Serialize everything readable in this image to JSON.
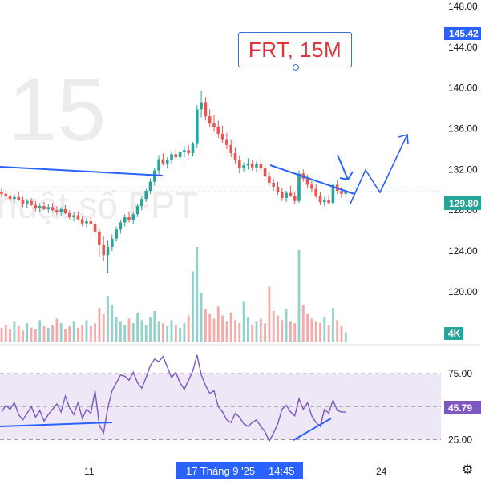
{
  "title": "FRT, 15M",
  "watermark": {
    "interval": "15",
    "brand": "huật số FPT"
  },
  "last_price_label": "129.80",
  "target_price_label": "145.42",
  "volume_badge": "4K",
  "rsi_badge": "45.79",
  "crosshair_date_label": "17 Tháng 9 '25",
  "crosshair_time_label": "14:45",
  "settings_icon": "gear-icon",
  "colors": {
    "up": "#26a69a",
    "down": "#ef5350",
    "rsi_line": "#7e57c2",
    "rsi_band": "#ede7f6",
    "drawing": "#2962ff",
    "axis_tag": "#2962ff",
    "volume_badge": "#26a69a",
    "title_text": "#e2323b"
  },
  "chart_data": [
    {
      "type": "candlestick",
      "title": "FRT, 15M",
      "ylabel": "",
      "ylim": [
        117,
        148
      ],
      "y_ticks": [
        "148.00",
        "144.00",
        "140.00",
        "136.00",
        "132.00",
        "128.00",
        "124.00",
        "120.00"
      ],
      "last_price": 129.8,
      "marked_price": 145.42,
      "ohlc": [
        [
          129.8,
          130.2,
          129.3,
          129.6
        ],
        [
          129.6,
          130.0,
          129.1,
          129.4
        ],
        [
          129.4,
          129.9,
          128.8,
          129.1
        ],
        [
          129.1,
          129.6,
          128.7,
          129.3
        ],
        [
          129.3,
          129.8,
          128.9,
          129.0
        ],
        [
          129.0,
          129.3,
          128.3,
          128.6
        ],
        [
          128.6,
          129.1,
          128.2,
          128.9
        ],
        [
          128.9,
          129.2,
          128.4,
          128.5
        ],
        [
          128.5,
          128.9,
          127.9,
          128.2
        ],
        [
          128.2,
          128.7,
          127.8,
          128.4
        ],
        [
          128.4,
          128.8,
          128.0,
          128.1
        ],
        [
          128.1,
          128.6,
          127.7,
          128.3
        ],
        [
          128.3,
          128.7,
          127.9,
          128.0
        ],
        [
          128.0,
          128.4,
          127.5,
          127.8
        ],
        [
          127.8,
          128.3,
          127.4,
          128.1
        ],
        [
          128.1,
          128.5,
          127.6,
          127.7
        ],
        [
          127.7,
          128.0,
          127.1,
          127.3
        ],
        [
          127.3,
          127.8,
          126.9,
          127.5
        ],
        [
          127.5,
          127.9,
          127.0,
          127.1
        ],
        [
          127.1,
          127.4,
          126.4,
          126.7
        ],
        [
          126.7,
          127.2,
          126.3,
          126.9
        ],
        [
          126.9,
          127.3,
          126.5,
          126.6
        ],
        [
          126.6,
          126.9,
          125.6,
          125.9
        ],
        [
          125.9,
          126.2,
          123.4,
          124.6
        ],
        [
          124.6,
          125.4,
          123.0,
          123.6
        ],
        [
          123.6,
          125.0,
          121.8,
          124.4
        ],
        [
          124.4,
          125.6,
          124.0,
          125.2
        ],
        [
          125.2,
          126.4,
          124.9,
          126.1
        ],
        [
          126.1,
          127.0,
          125.7,
          126.8
        ],
        [
          126.8,
          127.6,
          126.4,
          127.3
        ],
        [
          127.3,
          127.9,
          126.8,
          127.0
        ],
        [
          127.0,
          127.8,
          126.6,
          127.6
        ],
        [
          127.6,
          128.6,
          127.3,
          128.4
        ],
        [
          128.4,
          129.4,
          128.0,
          129.1
        ],
        [
          129.1,
          130.1,
          128.8,
          129.9
        ],
        [
          129.9,
          131.1,
          129.6,
          130.8
        ],
        [
          130.8,
          132.2,
          130.4,
          131.9
        ],
        [
          131.9,
          133.4,
          131.5,
          133.0
        ],
        [
          133.0,
          133.6,
          132.4,
          132.6
        ],
        [
          132.6,
          133.2,
          132.1,
          132.9
        ],
        [
          132.9,
          133.8,
          132.6,
          133.5
        ],
        [
          133.5,
          134.0,
          132.9,
          133.2
        ],
        [
          133.2,
          133.9,
          132.8,
          133.7
        ],
        [
          133.7,
          134.3,
          133.2,
          133.9
        ],
        [
          133.9,
          134.4,
          133.4,
          133.6
        ],
        [
          133.6,
          134.7,
          133.3,
          134.5
        ],
        [
          134.5,
          138.3,
          134.1,
          137.9
        ],
        [
          137.9,
          139.7,
          137.1,
          138.6
        ],
        [
          138.6,
          139.1,
          136.8,
          137.2
        ],
        [
          137.2,
          137.9,
          136.1,
          136.5
        ],
        [
          136.5,
          137.3,
          135.7,
          136.2
        ],
        [
          136.2,
          136.8,
          135.1,
          135.5
        ],
        [
          135.5,
          136.3,
          134.6,
          134.9
        ],
        [
          134.9,
          135.6,
          134.0,
          134.4
        ],
        [
          134.4,
          134.9,
          133.2,
          133.6
        ],
        [
          133.6,
          134.2,
          132.6,
          132.9
        ],
        [
          132.9,
          133.4,
          131.6,
          132.1
        ],
        [
          132.1,
          132.7,
          131.8,
          132.4
        ],
        [
          132.4,
          133.1,
          132.0,
          132.6
        ],
        [
          132.6,
          132.9,
          131.9,
          132.2
        ],
        [
          132.2,
          132.8,
          131.7,
          132.5
        ],
        [
          132.5,
          133.0,
          131.9,
          132.1
        ],
        [
          132.1,
          132.6,
          131.0,
          131.3
        ],
        [
          131.3,
          131.8,
          130.4,
          130.7
        ],
        [
          130.7,
          131.1,
          129.9,
          130.3
        ],
        [
          130.3,
          130.8,
          129.5,
          129.8
        ],
        [
          129.8,
          130.2,
          128.9,
          129.2
        ],
        [
          129.2,
          129.9,
          128.8,
          129.7
        ],
        [
          129.7,
          130.4,
          129.3,
          129.4
        ],
        [
          129.4,
          129.8,
          128.6,
          128.9
        ],
        [
          128.9,
          131.9,
          128.7,
          131.6
        ],
        [
          131.6,
          132.0,
          130.8,
          131.1
        ],
        [
          131.1,
          131.5,
          130.2,
          130.5
        ],
        [
          130.5,
          130.9,
          129.8,
          130.1
        ],
        [
          130.1,
          130.6,
          129.2,
          129.4
        ],
        [
          129.4,
          129.8,
          128.5,
          128.8
        ],
        [
          128.8,
          129.3,
          128.4,
          129.0
        ],
        [
          129.0,
          129.5,
          128.6,
          128.7
        ],
        [
          128.7,
          130.8,
          128.5,
          130.5
        ],
        [
          130.5,
          131.0,
          129.6,
          129.9
        ],
        [
          129.9,
          130.3,
          129.2,
          129.6
        ],
        [
          129.6,
          130.1,
          129.3,
          129.8
        ]
      ],
      "volume": [
        0.9,
        1.1,
        0.8,
        1.3,
        1.0,
        0.7,
        1.2,
        0.9,
        0.8,
        1.4,
        1.0,
        0.9,
        1.1,
        1.5,
        1.2,
        0.8,
        1.0,
        1.3,
        0.9,
        1.1,
        1.4,
        1.0,
        1.2,
        2.2,
        1.8,
        3.0,
        2.4,
        1.6,
        1.3,
        1.1,
        1.5,
        1.2,
        1.9,
        1.4,
        1.1,
        1.6,
        2.0,
        1.3,
        1.2,
        1.0,
        1.4,
        1.1,
        0.9,
        1.2,
        1.7,
        4.6,
        6.2,
        3.2,
        2.1,
        1.8,
        1.5,
        2.3,
        1.7,
        1.3,
        1.9,
        1.4,
        1.2,
        2.6,
        1.6,
        1.1,
        1.3,
        1.5,
        1.2,
        3.6,
        2.0,
        1.7,
        1.4,
        2.1,
        1.3,
        1.2,
        6.0,
        2.4,
        1.8,
        1.5,
        1.3,
        1.2,
        1.6,
        1.1,
        2.2,
        1.4,
        1.0,
        0.6
      ],
      "rsi": [
        46,
        51,
        48,
        53,
        44,
        40,
        45,
        50,
        42,
        47,
        39,
        44,
        48,
        52,
        46,
        58,
        49,
        44,
        53,
        41,
        48,
        45,
        62,
        36,
        30,
        49,
        62,
        68,
        74,
        73,
        70,
        76,
        68,
        64,
        72,
        81,
        86,
        84,
        88,
        80,
        72,
        76,
        68,
        63,
        70,
        77,
        89,
        74,
        66,
        60,
        62,
        50,
        46,
        40,
        38,
        45,
        42,
        37,
        35,
        38,
        40,
        35,
        31,
        24,
        30,
        37,
        48,
        51,
        46,
        43,
        56,
        48,
        53,
        43,
        38,
        35,
        48,
        45,
        55,
        47,
        46,
        45.79
      ],
      "rsi_levels": [
        75,
        50,
        25
      ],
      "rsi_ylim": [
        15,
        92
      ],
      "x_ticks": [
        "11",
        "24"
      ]
    }
  ]
}
